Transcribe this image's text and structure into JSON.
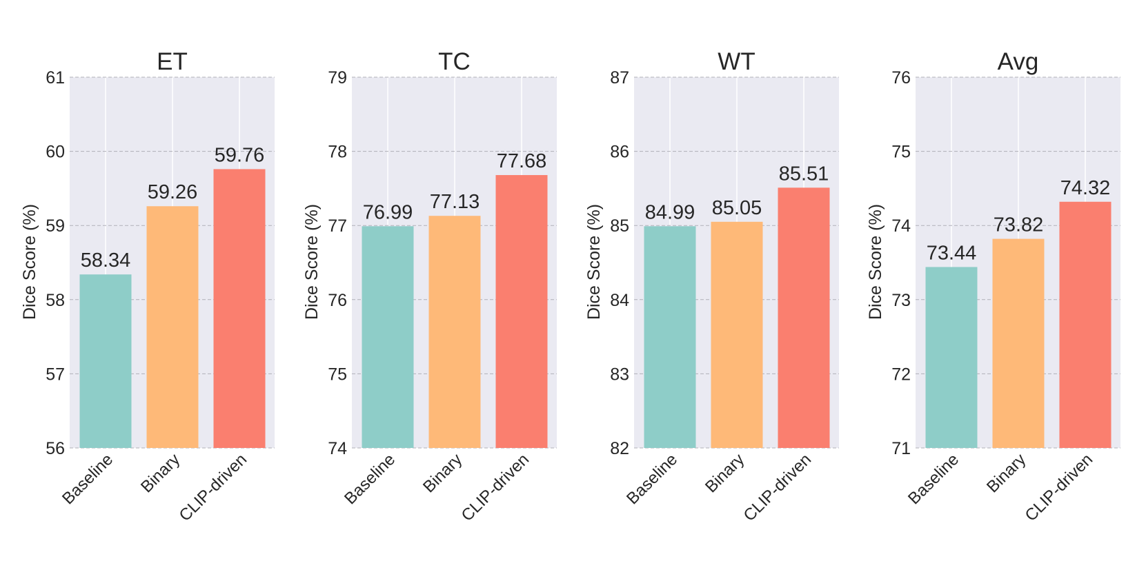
{
  "chart_data": [
    {
      "type": "bar",
      "title": "ET",
      "ylabel": "Dice Score (%)",
      "categories": [
        "Baseline",
        "Binary",
        "CLIP-driven"
      ],
      "values": [
        58.34,
        59.26,
        59.76
      ],
      "value_labels": [
        "58.34",
        "59.26",
        "59.76"
      ],
      "colors": [
        "#8ecdc8",
        "#feb978",
        "#fa7f6f"
      ],
      "ylim": [
        56,
        61
      ],
      "yticks": [
        56,
        57,
        58,
        59,
        60,
        61
      ]
    },
    {
      "type": "bar",
      "title": "TC",
      "ylabel": "Dice Score (%)",
      "categories": [
        "Baseline",
        "Binary",
        "CLIP-driven"
      ],
      "values": [
        76.99,
        77.13,
        77.68
      ],
      "value_labels": [
        "76.99",
        "77.13",
        "77.68"
      ],
      "colors": [
        "#8ecdc8",
        "#feb978",
        "#fa7f6f"
      ],
      "ylim": [
        74,
        79
      ],
      "yticks": [
        74,
        75,
        76,
        77,
        78,
        79
      ]
    },
    {
      "type": "bar",
      "title": "WT",
      "ylabel": "Dice Score (%)",
      "categories": [
        "Baseline",
        "Binary",
        "CLIP-driven"
      ],
      "values": [
        84.99,
        85.05,
        85.51
      ],
      "value_labels": [
        "84.99",
        "85.05",
        "85.51"
      ],
      "colors": [
        "#8ecdc8",
        "#feb978",
        "#fa7f6f"
      ],
      "ylim": [
        82,
        87
      ],
      "yticks": [
        82,
        83,
        84,
        85,
        86,
        87
      ]
    },
    {
      "type": "bar",
      "title": "Avg",
      "ylabel": "Dice Score (%)",
      "categories": [
        "Baseline",
        "Binary",
        "CLIP-driven"
      ],
      "values": [
        73.44,
        73.82,
        74.32
      ],
      "value_labels": [
        "73.44",
        "73.82",
        "74.32"
      ],
      "colors": [
        "#8ecdc8",
        "#feb978",
        "#fa7f6f"
      ],
      "ylim": [
        71,
        76
      ],
      "yticks": [
        71,
        72,
        73,
        74,
        75,
        76
      ]
    }
  ]
}
